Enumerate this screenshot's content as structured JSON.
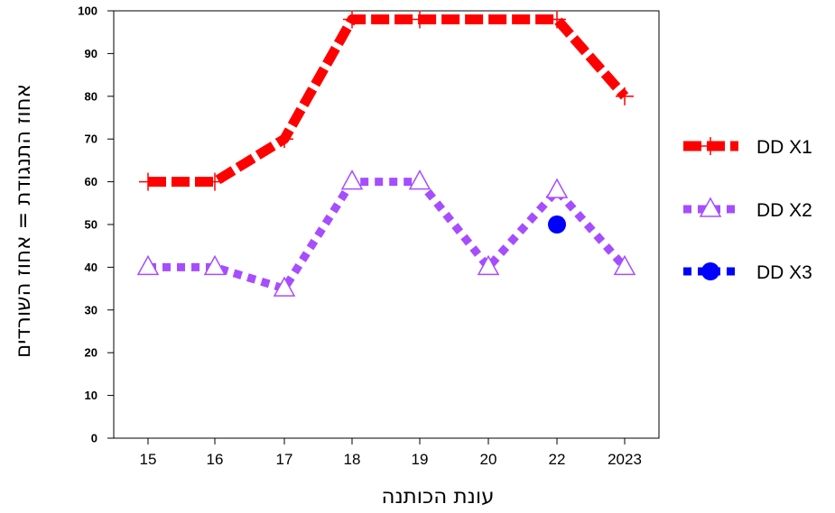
{
  "chart_data": {
    "type": "line",
    "categories": [
      "15",
      "16",
      "17",
      "18",
      "19",
      "20",
      "22",
      "2023"
    ],
    "xlabel": "עונת הכותנה",
    "ylabel": "אחוז התנגודת = אחוז השורדים",
    "ylim": [
      0,
      100
    ],
    "yticks": [
      0,
      10,
      20,
      30,
      40,
      50,
      60,
      70,
      80,
      90,
      100
    ],
    "legend_position": "right",
    "grid": false,
    "series": [
      {
        "name": "DD X1",
        "color": "#ff0000",
        "marker": "plus",
        "line": "dashed",
        "values": [
          60,
          60,
          70,
          98,
          98,
          null,
          98,
          80
        ]
      },
      {
        "name": "DD X2",
        "color": "#a64dff",
        "marker": "triangle-open",
        "line": "dotted",
        "values": [
          40,
          40,
          35,
          60,
          60,
          40,
          58,
          40
        ]
      },
      {
        "name": "DD X3",
        "color": "#0000ff",
        "marker": "circle",
        "line": "dotted",
        "values": [
          null,
          null,
          null,
          null,
          null,
          null,
          50,
          null
        ]
      }
    ]
  }
}
